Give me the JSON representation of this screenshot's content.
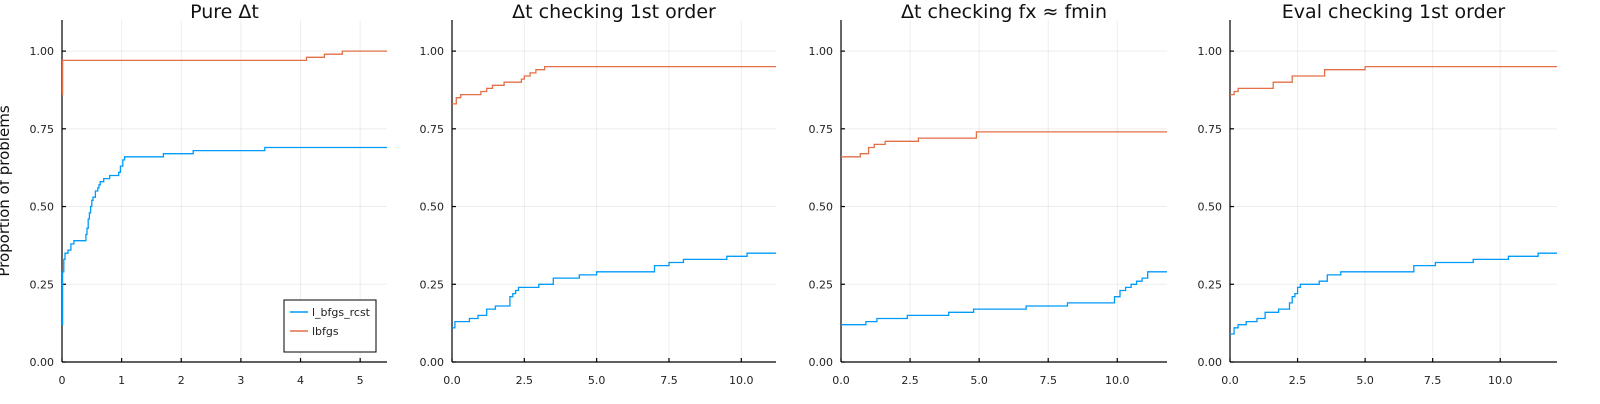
{
  "chart_data": [
    {
      "type": "line",
      "step": true,
      "title": "Pure Δt",
      "ylabel": "Proportion of problems",
      "xlabel": "",
      "xlim": [
        0,
        5.45
      ],
      "ylim": [
        0,
        1.1
      ],
      "xticks": [
        0,
        1,
        2,
        3,
        4,
        5
      ],
      "xtick_labels": [
        "0",
        "1",
        "2",
        "3",
        "4",
        "5"
      ],
      "yticks": [
        0,
        0.25,
        0.5,
        0.75,
        1.0
      ],
      "ytick_labels": [
        "0.00",
        "0.25",
        "0.50",
        "0.75",
        "1.00"
      ],
      "grid": true,
      "legend": "bottom-right",
      "series": [
        {
          "name": "l_bfgs_rcst",
          "color": "#009AFA",
          "x": [
            0,
            0.01,
            0.03,
            0.05,
            0.1,
            0.15,
            0.2,
            0.3,
            0.4,
            0.42,
            0.44,
            0.46,
            0.48,
            0.5,
            0.52,
            0.56,
            0.6,
            0.62,
            0.64,
            0.7,
            0.8,
            0.95,
            0.98,
            1.02,
            1.05,
            1.1,
            1.7,
            2.2,
            3.4,
            5.45
          ],
          "y": [
            0.12,
            0.29,
            0.33,
            0.35,
            0.36,
            0.38,
            0.39,
            0.39,
            0.41,
            0.43,
            0.46,
            0.48,
            0.5,
            0.52,
            0.53,
            0.55,
            0.56,
            0.57,
            0.58,
            0.59,
            0.6,
            0.61,
            0.63,
            0.65,
            0.66,
            0.66,
            0.67,
            0.68,
            0.69,
            0.69
          ]
        },
        {
          "name": "lbfgs",
          "color": "#E36F47",
          "x": [
            0,
            0.01,
            3.95,
            4.1,
            4.4,
            4.7,
            5.45
          ],
          "y": [
            0.86,
            0.97,
            0.97,
            0.98,
            0.99,
            1.0,
            1.0
          ]
        }
      ]
    },
    {
      "type": "line",
      "step": true,
      "title": "Δt checking 1st order",
      "xlabel": "",
      "xlim": [
        0,
        11.2
      ],
      "ylim": [
        0,
        1.1
      ],
      "xticks": [
        0,
        2.5,
        5,
        7.5,
        10
      ],
      "xtick_labels": [
        "0.0",
        "2.5",
        "5.0",
        "7.5",
        "10.0"
      ],
      "yticks": [
        0,
        0.25,
        0.5,
        0.75,
        1.0
      ],
      "ytick_labels": [
        "0.00",
        "0.25",
        "0.50",
        "0.75",
        "1.00"
      ],
      "grid": true,
      "series": [
        {
          "name": "",
          "color": "#009AFA",
          "x": [
            0,
            0.1,
            0.6,
            0.9,
            1.2,
            1.5,
            2.0,
            2.1,
            2.2,
            2.3,
            2.4,
            3.0,
            3.5,
            4.0,
            4.4,
            5.0,
            6.5,
            7.0,
            7.5,
            8.0,
            9.5,
            10.2,
            11.2
          ],
          "y": [
            0.11,
            0.13,
            0.14,
            0.15,
            0.17,
            0.18,
            0.21,
            0.22,
            0.23,
            0.24,
            0.24,
            0.25,
            0.27,
            0.27,
            0.28,
            0.29,
            0.29,
            0.31,
            0.32,
            0.33,
            0.34,
            0.35,
            0.35
          ],
          "id": "s2-rcst"
        },
        {
          "name": "",
          "color": "#E36F47",
          "x": [
            0,
            0.15,
            0.3,
            1.0,
            1.2,
            1.4,
            1.8,
            2.4,
            2.5,
            2.7,
            2.9,
            3.2,
            11.2
          ],
          "y": [
            0.83,
            0.85,
            0.86,
            0.87,
            0.88,
            0.89,
            0.9,
            0.91,
            0.92,
            0.93,
            0.94,
            0.95,
            0.95
          ]
        }
      ]
    },
    {
      "type": "line",
      "step": true,
      "title": "Δt checking fx ≈ fmin",
      "xlabel": "",
      "xlim": [
        0,
        11.8
      ],
      "ylim": [
        0,
        1.1
      ],
      "xticks": [
        0,
        2.5,
        5,
        7.5,
        10
      ],
      "xtick_labels": [
        "0.0",
        "2.5",
        "5.0",
        "7.5",
        "10.0"
      ],
      "yticks": [
        0,
        0.25,
        0.5,
        0.75,
        1.0
      ],
      "ytick_labels": [
        "0.00",
        "0.25",
        "0.50",
        "0.75",
        "1.00"
      ],
      "grid": true,
      "series": [
        {
          "name": "",
          "color": "#009AFA",
          "x": [
            0,
            0.9,
            1.3,
            2.4,
            3.9,
            4.8,
            6.7,
            8.2,
            9.9,
            10.1,
            10.3,
            10.5,
            10.7,
            10.9,
            11.1,
            11.8
          ],
          "y": [
            0.12,
            0.13,
            0.14,
            0.15,
            0.16,
            0.17,
            0.18,
            0.19,
            0.21,
            0.23,
            0.24,
            0.25,
            0.26,
            0.27,
            0.29,
            0.29
          ]
        },
        {
          "name": "",
          "color": "#E36F47",
          "x": [
            0,
            0.7,
            1.0,
            1.2,
            1.6,
            2.8,
            4.9,
            11.8
          ],
          "y": [
            0.66,
            0.67,
            0.69,
            0.7,
            0.71,
            0.72,
            0.74,
            0.74
          ]
        }
      ]
    },
    {
      "type": "line",
      "step": true,
      "title": "Eval checking 1st order",
      "xlabel": "",
      "xlim": [
        0,
        12.1
      ],
      "ylim": [
        0,
        1.1
      ],
      "xticks": [
        0,
        2.5,
        5,
        7.5,
        10
      ],
      "xtick_labels": [
        "0.0",
        "2.5",
        "5.0",
        "7.5",
        "10.0"
      ],
      "yticks": [
        0,
        0.25,
        0.5,
        0.75,
        1.0
      ],
      "ytick_labels": [
        "0.00",
        "0.25",
        "0.50",
        "0.75",
        "1.00"
      ],
      "grid": true,
      "series": [
        {
          "name": "",
          "color": "#009AFA",
          "x": [
            0,
            0.15,
            0.3,
            0.6,
            1.0,
            1.3,
            1.8,
            2.2,
            2.3,
            2.4,
            2.5,
            2.6,
            3.3,
            3.6,
            4.1,
            6.8,
            7.6,
            9.0,
            10.3,
            11.4,
            12.1
          ],
          "y": [
            0.09,
            0.11,
            0.12,
            0.13,
            0.14,
            0.16,
            0.17,
            0.19,
            0.21,
            0.22,
            0.24,
            0.25,
            0.26,
            0.28,
            0.29,
            0.31,
            0.32,
            0.33,
            0.34,
            0.35,
            0.35
          ]
        },
        {
          "name": "",
          "color": "#E36F47",
          "x": [
            0,
            0.15,
            0.3,
            1.6,
            2.3,
            3.5,
            5.0,
            12.1
          ],
          "y": [
            0.86,
            0.87,
            0.88,
            0.9,
            0.92,
            0.94,
            0.95,
            0.95
          ]
        }
      ]
    }
  ]
}
